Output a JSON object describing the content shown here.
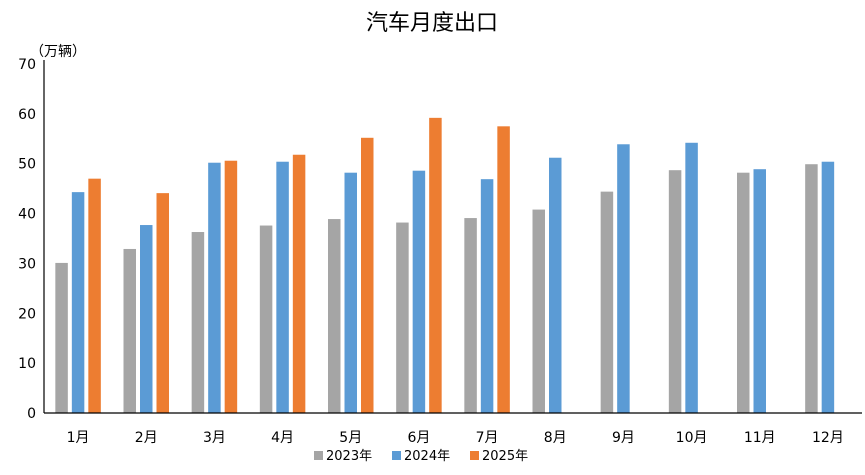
{
  "chart_data": {
    "type": "bar",
    "title": "汽车月度出口",
    "unit_label": "（万辆）",
    "categories": [
      "1月",
      "2月",
      "3月",
      "4月",
      "5月",
      "6月",
      "7月",
      "8月",
      "9月",
      "10月",
      "11月",
      "12月"
    ],
    "ylim": [
      0,
      70
    ],
    "yticks": [
      0,
      10,
      20,
      30,
      40,
      50,
      60,
      70
    ],
    "grid": false,
    "legend_position": "bottom",
    "series": [
      {
        "name": "2023年",
        "color": "#A5A5A5",
        "values": [
          30.1,
          32.9,
          36.3,
          37.6,
          38.9,
          38.2,
          39.1,
          40.8,
          44.4,
          48.7,
          48.2,
          49.9
        ]
      },
      {
        "name": "2024年",
        "color": "#5B9BD5",
        "values": [
          44.3,
          37.7,
          50.2,
          50.4,
          48.2,
          48.6,
          46.9,
          51.2,
          53.9,
          54.2,
          48.9,
          50.4
        ]
      },
      {
        "name": "2025年",
        "color": "#ED7D31",
        "values": [
          47.0,
          44.1,
          50.6,
          51.8,
          55.2,
          59.2,
          57.5,
          null,
          null,
          null,
          null,
          null
        ]
      }
    ]
  }
}
